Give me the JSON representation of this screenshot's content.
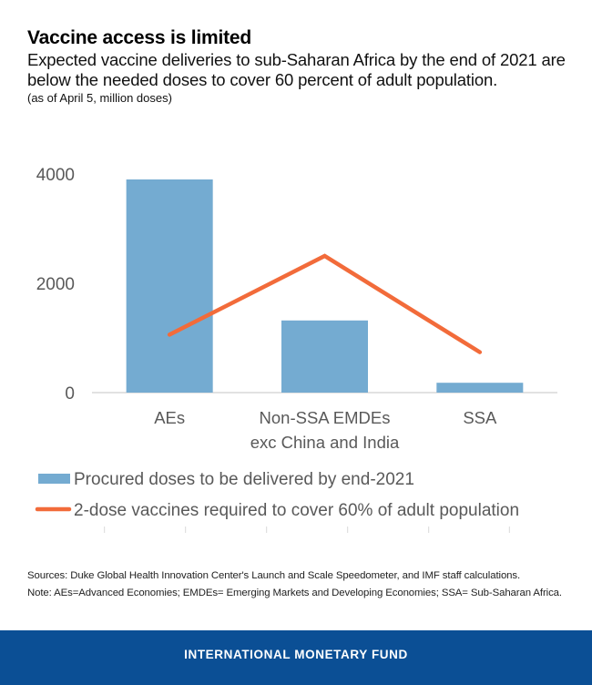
{
  "header": {
    "title": "Vaccine access is limited",
    "subtitle": "Expected vaccine deliveries to sub-Saharan Africa by the end of 2021 are below the needed doses to cover 60 percent of adult population.",
    "units": "(as of April 5, million doses)"
  },
  "chart_data": {
    "type": "bar",
    "title": "Vaccine access is limited",
    "subtitle": "Expected vaccine deliveries to sub-Saharan Africa by the end of 2021 are below the needed doses to cover 60 percent of adult population.",
    "xlabel": "",
    "ylabel": "(as of April 5, million doses)",
    "categories": [
      "AEs",
      "Non-SSA EMDEs exc China and India",
      "SSA"
    ],
    "category_label_lines": [
      [
        "AEs"
      ],
      [
        "Non-SSA EMDEs",
        "exc China and India"
      ],
      [
        "SSA"
      ]
    ],
    "series": [
      {
        "name": "Procured doses to be delivered by end-2021",
        "type": "bar",
        "color": "#74abd1",
        "values": [
          3900,
          1320,
          180
        ]
      },
      {
        "name": "2-dose vaccines required to cover 60% of adult population",
        "type": "line",
        "color": "#f26b3a",
        "values": [
          1060,
          2500,
          740
        ]
      }
    ],
    "ylim": [
      0,
      4000
    ],
    "yticks": [
      0,
      2000,
      4000
    ],
    "ytick_labels": [
      "0",
      "2000",
      "4000"
    ],
    "grid": false,
    "legend": "bottom-left"
  },
  "notes": {
    "sources": "Sources: Duke Global Health Innovation Center's Launch and Scale Speedometer, and IMF staff calculations.",
    "note": "Note: AEs=Advanced Economies; EMDEs= Emerging Markets and Developing Economies; SSA= Sub-Saharan Africa."
  },
  "footer": {
    "brand": "INTERNATIONAL MONETARY FUND",
    "color": "#0b4f95"
  }
}
